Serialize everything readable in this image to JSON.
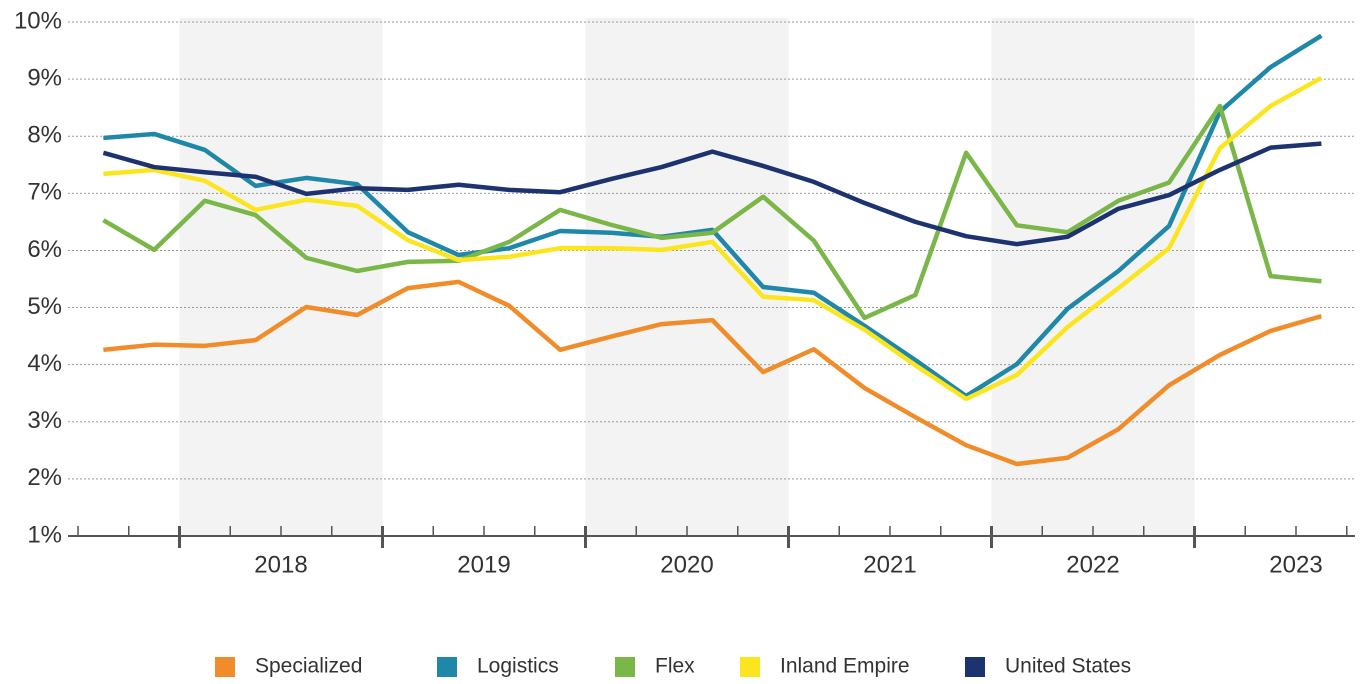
{
  "chart_data": {
    "type": "line",
    "categories": [
      null,
      null,
      null,
      null,
      null,
      null,
      null,
      null,
      null,
      null,
      null,
      null,
      null,
      null,
      null,
      null,
      null,
      null,
      null,
      null,
      null,
      null,
      null,
      null,
      null
    ],
    "year_labels": [
      "2018",
      "2019",
      "2020",
      "2021",
      "2022",
      "2023"
    ],
    "ylim": [
      1,
      10
    ],
    "yticks": [
      {
        "value": 1,
        "label": "1%"
      },
      {
        "value": 2,
        "label": "2%"
      },
      {
        "value": 3,
        "label": "3%"
      },
      {
        "value": 4,
        "label": "4%"
      },
      {
        "value": 5,
        "label": "5%"
      },
      {
        "value": 6,
        "label": "6%"
      },
      {
        "value": 7,
        "label": "7%"
      },
      {
        "value": 8,
        "label": "8%"
      },
      {
        "value": 9,
        "label": "9%"
      },
      {
        "value": 10,
        "label": "10%"
      }
    ],
    "grid": true,
    "legend": "bottom",
    "series": [
      {
        "name": "Specialized",
        "color": "#f08c2a",
        "values": [
          4.26,
          4.35,
          4.33,
          4.43,
          5.01,
          4.87,
          5.34,
          5.45,
          5.03,
          4.26,
          4.49,
          4.71,
          4.78,
          3.87,
          4.27,
          3.59,
          3.08,
          2.59,
          2.26,
          2.37,
          2.87,
          3.64,
          4.17,
          4.59,
          4.85
        ]
      },
      {
        "name": "Logistics",
        "color": "#1f87a8",
        "values": [
          7.97,
          8.04,
          7.76,
          7.13,
          7.27,
          7.16,
          6.32,
          5.92,
          6.04,
          6.34,
          6.31,
          6.24,
          6.36,
          5.36,
          5.26,
          4.68,
          4.08,
          3.45,
          4.01,
          4.98,
          5.64,
          6.43,
          8.43,
          9.21,
          9.76
        ]
      },
      {
        "name": "Flex",
        "color": "#7ab648",
        "values": [
          6.53,
          6.01,
          6.87,
          6.62,
          5.87,
          5.64,
          5.8,
          5.82,
          6.15,
          6.71,
          6.45,
          6.22,
          6.31,
          6.94,
          6.17,
          4.82,
          5.22,
          7.71,
          6.44,
          6.32,
          6.87,
          7.19,
          8.53,
          5.55,
          5.46
        ]
      },
      {
        "name": "Inland Empire",
        "color": "#fbe51f",
        "values": [
          7.34,
          7.41,
          7.22,
          6.71,
          6.89,
          6.78,
          6.18,
          5.83,
          5.89,
          6.04,
          6.04,
          6.01,
          6.15,
          5.19,
          5.13,
          4.61,
          3.99,
          3.4,
          3.82,
          4.66,
          5.34,
          6.04,
          7.79,
          8.53,
          9.02
        ]
      },
      {
        "name": "United States",
        "color": "#1d3370",
        "values": [
          7.71,
          7.46,
          7.37,
          7.29,
          6.99,
          7.09,
          7.06,
          7.15,
          7.06,
          7.02,
          7.25,
          7.46,
          7.73,
          7.48,
          7.2,
          6.83,
          6.5,
          6.25,
          6.11,
          6.24,
          6.73,
          6.97,
          7.41,
          7.8,
          7.87
        ]
      }
    ]
  }
}
